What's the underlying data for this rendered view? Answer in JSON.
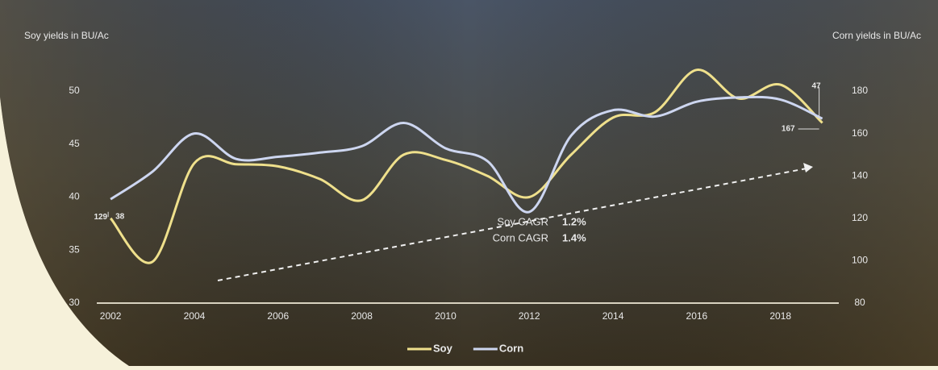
{
  "chart_data": {
    "type": "line",
    "y_label": "Soy yields in BU/Ac",
    "y2_label": "Corn yields in BU/Ac",
    "x": [
      2002,
      2003,
      2004,
      2005,
      2006,
      2007,
      2008,
      2009,
      2010,
      2011,
      2012,
      2013,
      2014,
      2015,
      2016,
      2017,
      2018,
      2019
    ],
    "series": [
      {
        "name": "Soy",
        "color": "#efe08c",
        "values": [
          38,
          33.9,
          43.2,
          43.1,
          42.9,
          41.7,
          39.7,
          44,
          43.5,
          42,
          40,
          44,
          47.5,
          48,
          52,
          49.3,
          50.6,
          47
        ]
      },
      {
        "name": "Corn",
        "color": "#cdd6f0",
        "axis": "y2",
        "values": [
          129,
          142,
          160,
          148,
          149,
          151,
          154,
          165,
          153,
          147,
          123,
          159,
          171,
          168,
          175,
          177,
          176,
          167
        ]
      }
    ],
    "xlim": [
      2001.67,
      2019.2
    ],
    "xticks": [
      2002,
      2004,
      2006,
      2008,
      2010,
      2012,
      2014,
      2016,
      2018
    ],
    "ylim": [
      30,
      50
    ],
    "yticks": [
      30,
      35,
      40,
      45,
      50
    ],
    "y2lim": [
      80,
      180
    ],
    "y2ticks": [
      80,
      100,
      120,
      140,
      160,
      180
    ],
    "annotations": [
      {
        "text": "Soy CAGR",
        "value": "1.2%"
      },
      {
        "text": "Corn CAGR",
        "value": "1.4%"
      }
    ],
    "legend": "bottom"
  }
}
